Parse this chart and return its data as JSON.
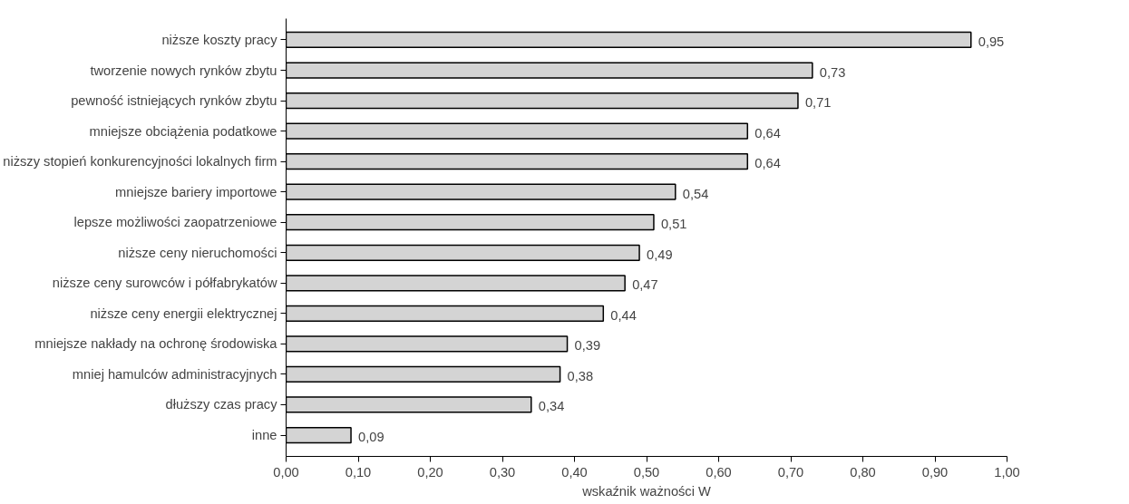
{
  "chart_data": {
    "type": "bar",
    "orientation": "horizontal",
    "xlabel": "wskaźnik ważności W",
    "categories": [
      "niższe koszty pracy",
      "tworzenie nowych rynków zbytu",
      "pewność istniejących rynków zbytu",
      "mniejsze obciążenia podatkowe",
      "niższy stopień konkurencyjności lokalnych firm",
      "mniejsze bariery importowe",
      "lepsze możliwości zaopatrzeniowe",
      "niższe ceny nieruchomości",
      "niższe ceny surowców i półfabrykatów",
      "niższe ceny energii elektrycznej",
      "mniejsze nakłady na ochronę środowiska",
      "mniej hamulców administracyjnych",
      "dłuższy czas pracy",
      "inne"
    ],
    "values": [
      0.95,
      0.73,
      0.71,
      0.64,
      0.64,
      0.54,
      0.51,
      0.49,
      0.47,
      0.44,
      0.39,
      0.38,
      0.34,
      0.09
    ],
    "value_labels": [
      "0,95",
      "0,73",
      "0,71",
      "0,64",
      "0,64",
      "0,54",
      "0,51",
      "0,49",
      "0,47",
      "0,44",
      "0,39",
      "0,38",
      "0,34",
      "0,09"
    ],
    "color": "#d4d4d4",
    "xlim": [
      0,
      1
    ],
    "xticks": [
      {
        "value": 0,
        "label": "0,00"
      },
      {
        "value": 0.1,
        "label": "0,10"
      },
      {
        "value": 0.2,
        "label": "0,20"
      },
      {
        "value": 0.3,
        "label": "0,30"
      },
      {
        "value": 0.4,
        "label": "0,40"
      },
      {
        "value": 0.5,
        "label": "0,50"
      },
      {
        "value": 0.6,
        "label": "0,60"
      },
      {
        "value": 0.7,
        "label": "0,70"
      },
      {
        "value": 0.8,
        "label": "0,80"
      },
      {
        "value": 0.9,
        "label": "0,90"
      },
      {
        "value": 1.0,
        "label": "1,00"
      }
    ],
    "grid": false
  }
}
